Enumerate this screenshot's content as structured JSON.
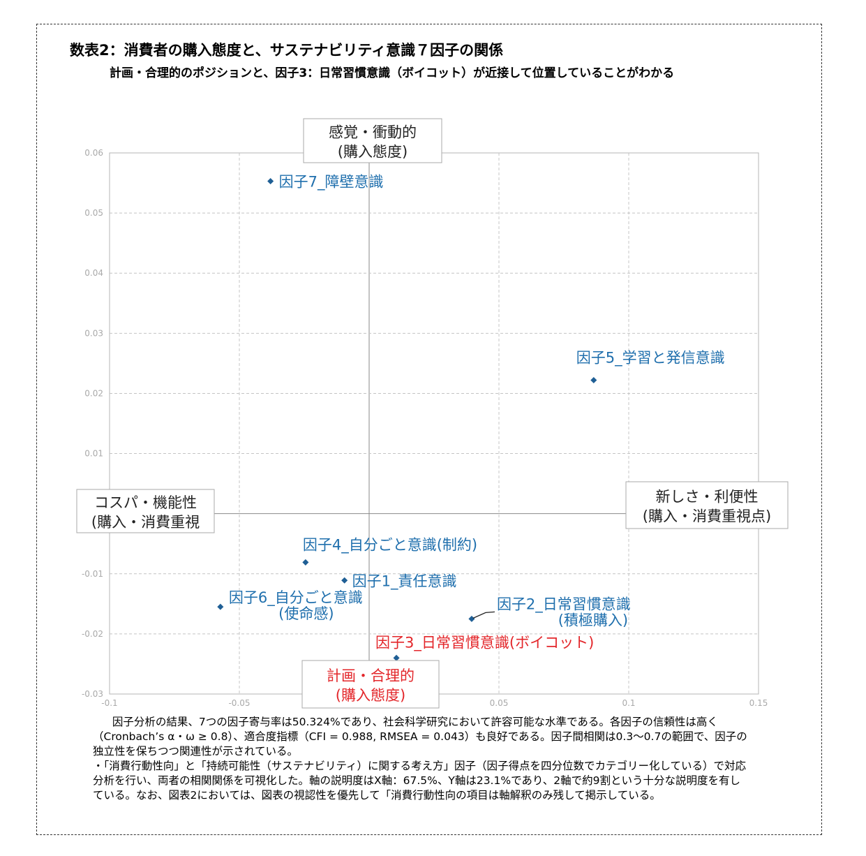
{
  "header": {
    "title": "数表2：消費者の購入態度と、サステナビリティ意識７因子の関係",
    "subtitle": "計画・合理的のポジションと、因子3：日常習慣意識（ボイコット）が近接して位置していることがわかる"
  },
  "chart_data": {
    "type": "scatter",
    "xlim": [
      -0.1,
      0.15
    ],
    "ylim": [
      -0.03,
      0.06
    ],
    "x_ticks": [
      -0.1,
      -0.05,
      0,
      0.05,
      0.1,
      0.15
    ],
    "x_tick_labels": [
      "-0.1",
      "-0.05",
      "",
      "0.05",
      "0.1",
      "0.15"
    ],
    "y_ticks": [
      -0.03,
      -0.02,
      -0.01,
      0,
      0.01,
      0.02,
      0.03,
      0.04,
      0.05,
      0.06
    ],
    "y_tick_labels": [
      "-0.03",
      "-0.02",
      "-0.01",
      "",
      "0.01",
      "0.02",
      "0.03",
      "0.04",
      "0.05",
      "0.06"
    ],
    "grid": true,
    "points": [
      {
        "label": "因子7_障壁意識",
        "x": -0.038,
        "y": 0.0553,
        "color": "#1f6fad"
      },
      {
        "label": "因子5_学習と発信意識",
        "x": 0.0865,
        "y": 0.0222,
        "color": "#1f6fad"
      },
      {
        "label": "因子4_自分ごと意識(制約)",
        "x": -0.0245,
        "y": -0.0081,
        "color": "#1f6fad"
      },
      {
        "label": "因子1_責任意識",
        "x": -0.0095,
        "y": -0.0111,
        "color": "#1f6fad"
      },
      {
        "label": "因子6_自分ごと意識",
        "label2": "(使命感)",
        "x": -0.0573,
        "y": -0.0155,
        "color": "#1f6fad"
      },
      {
        "label": "因子2_日常習慣意識",
        "label2": "(積極購入)",
        "x": 0.0395,
        "y": -0.0175,
        "color": "#1f6fad"
      },
      {
        "label": "因子3_日常習慣意識(ボイコット)",
        "x": 0.0105,
        "y": -0.024,
        "color": "#e3262a"
      }
    ],
    "axis_labels": [
      {
        "line1": "感覚・衝動的",
        "line2": "(購入態度)",
        "position": "top",
        "color": "#222222"
      },
      {
        "line1": "計画・合理的",
        "line2": "(購入態度)",
        "position": "bottom",
        "color": "#e3262a"
      },
      {
        "line1": "コスパ・機能性",
        "line2": "(購入・消費重視",
        "position": "left",
        "color": "#222222"
      },
      {
        "line1": "新しさ・利便性",
        "line2": "(購入・消費重視点)",
        "position": "right",
        "color": "#222222"
      }
    ]
  },
  "footnote": {
    "para1": "因子分析の結果、7つの因子寄与率は50.324%であり、社会科学研究において許容可能な水準である。各因子の信頼性は高く（Cronbach’s α・ω ≥ 0.8）、適合度指標（CFI = 0.988, RMSEA = 0.043）も良好である。因子間相関は0.3～0.7の範囲で、因子の独立性を保ちつつ関連性が示されている。",
    "para2": "・「消費行動性向」と「持続可能性（サステナビリティ）に関する考え方」因子（因子得点を四分位数でカテゴリー化している）で対応分析を行い、両者の相関関係を可視化した。軸の説明度はX軸：67.5%、Y軸は23.1%であり、2軸で約9割という十分な説明度を有している。なお、図表2においては、図表の視認性を優先して「消費行動性向の項目は軸解釈のみ残して掲示している。"
  }
}
